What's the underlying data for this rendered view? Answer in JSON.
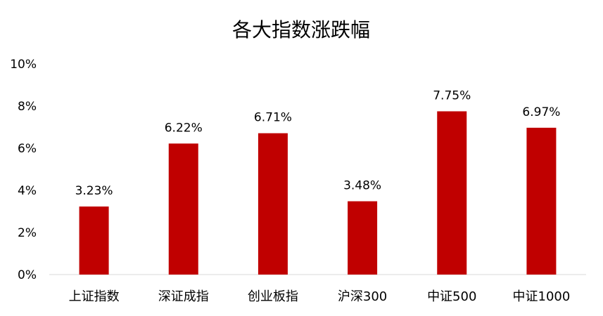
{
  "chart_data": {
    "type": "bar",
    "title": "各大指数涨跌幅",
    "xlabel": "",
    "ylabel": "",
    "categories": [
      "上证指数",
      "深证成指",
      "创业板指",
      "沪深300",
      "中证500",
      "中证1000"
    ],
    "values": [
      3.23,
      6.22,
      6.71,
      3.48,
      7.75,
      6.97
    ],
    "data_labels": [
      "3.23%",
      "6.22%",
      "6.71%",
      "3.48%",
      "7.75%",
      "6.97%"
    ],
    "ylim": [
      0,
      10
    ],
    "yticks": [
      0,
      2,
      4,
      6,
      8,
      10
    ],
    "ytick_labels": [
      "0%",
      "2%",
      "4%",
      "6%",
      "8%",
      "10%"
    ],
    "grid": false,
    "legend": "none",
    "bar_color": "#c00000"
  }
}
